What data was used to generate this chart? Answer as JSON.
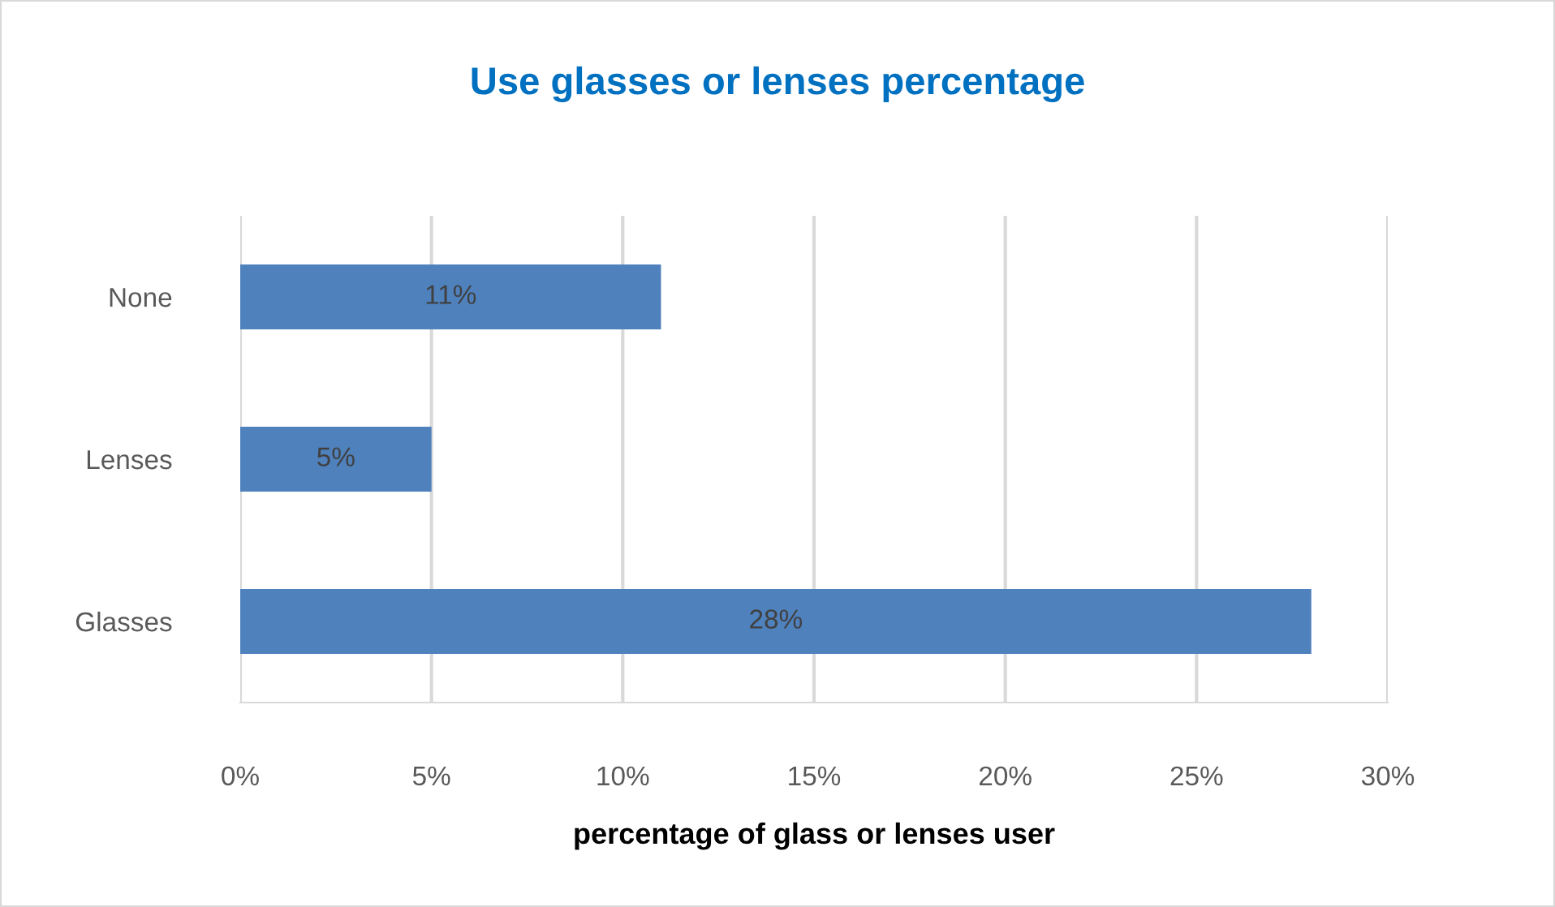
{
  "chart_data": {
    "type": "bar",
    "orientation": "horizontal",
    "title": "Use glasses or lenses percentage",
    "xlabel": "percentage of glass or lenses user",
    "categories": [
      "None",
      "Lenses",
      "Glasses"
    ],
    "values": [
      11,
      5,
      28
    ],
    "color": "#4f81bd",
    "value_labels": [
      "11%",
      "5%",
      "28%"
    ],
    "xlim": [
      0,
      30
    ],
    "xticks": [
      {
        "value": 0,
        "label": "0%"
      },
      {
        "value": 5,
        "label": "5%"
      },
      {
        "value": 10,
        "label": "10%"
      },
      {
        "value": 15,
        "label": "15%"
      },
      {
        "value": 20,
        "label": "20%"
      },
      {
        "value": 25,
        "label": "25%"
      },
      {
        "value": 30,
        "label": "30%"
      }
    ],
    "grid": "x"
  }
}
